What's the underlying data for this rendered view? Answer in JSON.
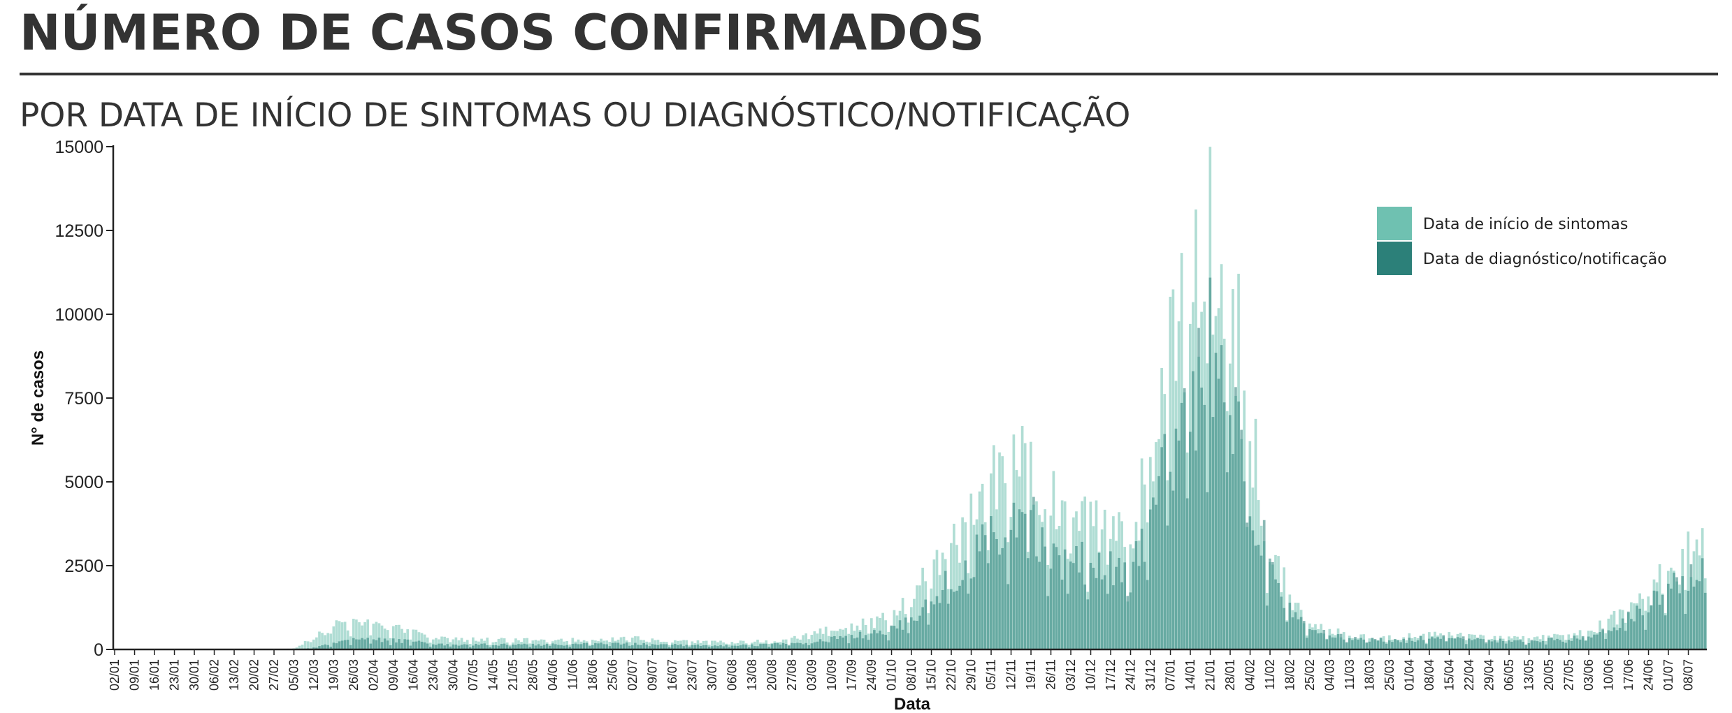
{
  "header": {
    "title": "NÚMERO DE CASOS CONFIRMADOS",
    "subtitle": "POR DATA DE INÍCIO DE SINTOMAS OU DIAGNÓSTICO/NOTIFICAÇÃO"
  },
  "colors": {
    "symptom": "#6fc1b1",
    "diagnosis": "#2c8079",
    "axis": "#222222",
    "text": "#333333"
  },
  "chart_data": {
    "type": "bar",
    "xlabel": "Data",
    "ylabel": "N° de casos",
    "ylim": [
      0,
      15000
    ],
    "y_ticks": [
      "0",
      "2500",
      "5000",
      "7500",
      "10000",
      "12500",
      "15000"
    ],
    "x_ticks": [
      "02/01",
      "09/01",
      "16/01",
      "23/01",
      "30/01",
      "06/02",
      "13/02",
      "20/02",
      "27/02",
      "05/03",
      "12/03",
      "19/03",
      "26/03",
      "02/04",
      "09/04",
      "16/04",
      "23/04",
      "30/04",
      "07/05",
      "14/05",
      "21/05",
      "28/05",
      "04/06",
      "11/06",
      "18/06",
      "25/06",
      "02/07",
      "09/07",
      "16/07",
      "23/07",
      "30/07",
      "06/08",
      "13/08",
      "20/08",
      "27/08",
      "03/09",
      "10/09",
      "17/09",
      "24/09",
      "01/10",
      "08/10",
      "15/10",
      "22/10",
      "29/10",
      "05/11",
      "12/11",
      "19/11",
      "26/11",
      "03/12",
      "10/12",
      "17/12",
      "24/12",
      "31/12",
      "07/01",
      "14/01",
      "21/01",
      "28/01",
      "04/02",
      "11/02",
      "18/02",
      "25/02",
      "04/03",
      "11/03",
      "18/03",
      "25/03",
      "01/04",
      "08/04",
      "15/04",
      "22/04",
      "29/04",
      "06/05",
      "13/05",
      "20/05",
      "27/05",
      "03/06",
      "10/06",
      "17/06",
      "24/06",
      "01/07",
      "08/07"
    ],
    "x_start": "2020-01-02",
    "days": 560,
    "legend_position": "top-right",
    "grid": false,
    "series": [
      {
        "name": "Data de início de sintomas",
        "color": "#6fc1b1",
        "weekly_values": [
          0,
          0,
          0,
          0,
          0,
          0,
          0,
          0,
          0,
          30,
          350,
          700,
          800,
          720,
          650,
          520,
          380,
          320,
          300,
          290,
          280,
          280,
          290,
          300,
          320,
          340,
          330,
          300,
          260,
          240,
          220,
          230,
          240,
          260,
          320,
          450,
          600,
          700,
          820,
          950,
          1500,
          2400,
          3000,
          4000,
          5300,
          5400,
          5700,
          4800,
          3800,
          3900,
          3600,
          3200,
          6200,
          9000,
          10800,
          13000,
          11000,
          7000,
          3300,
          1600,
          800,
          600,
          420,
          380,
          350,
          400,
          450,
          450,
          420,
          380,
          330,
          330,
          380,
          420,
          520,
          850,
          1200,
          1700,
          2400,
          2900
        ],
        "final_value": 3400
      },
      {
        "name": "Data de diagnóstico/notificação",
        "color": "#2c8079",
        "weekly_values": [
          0,
          0,
          0,
          0,
          0,
          0,
          0,
          0,
          0,
          0,
          50,
          180,
          280,
          300,
          280,
          230,
          180,
          150,
          150,
          150,
          150,
          150,
          150,
          160,
          170,
          180,
          170,
          160,
          140,
          130,
          120,
          120,
          130,
          150,
          180,
          240,
          330,
          400,
          480,
          600,
          950,
          1500,
          2100,
          2700,
          3700,
          3900,
          3900,
          3200,
          2600,
          2700,
          2500,
          2300,
          4100,
          6000,
          7000,
          9500,
          8000,
          5000,
          2500,
          1200,
          600,
          460,
          330,
          300,
          270,
          300,
          350,
          350,
          330,
          300,
          260,
          260,
          300,
          330,
          400,
          650,
          950,
          1300,
          1800,
          2200
        ],
        "final_value": 2600
      }
    ]
  }
}
